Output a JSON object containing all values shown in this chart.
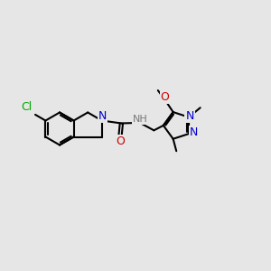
{
  "bg_color": "#e6e6e6",
  "line_color": "#000000",
  "bond_width": 1.5,
  "atom_colors": {
    "N": "#0000cc",
    "O": "#cc0000",
    "Cl": "#00aa00",
    "NH": "#777777",
    "C": "#000000"
  },
  "font_size": 8.5
}
